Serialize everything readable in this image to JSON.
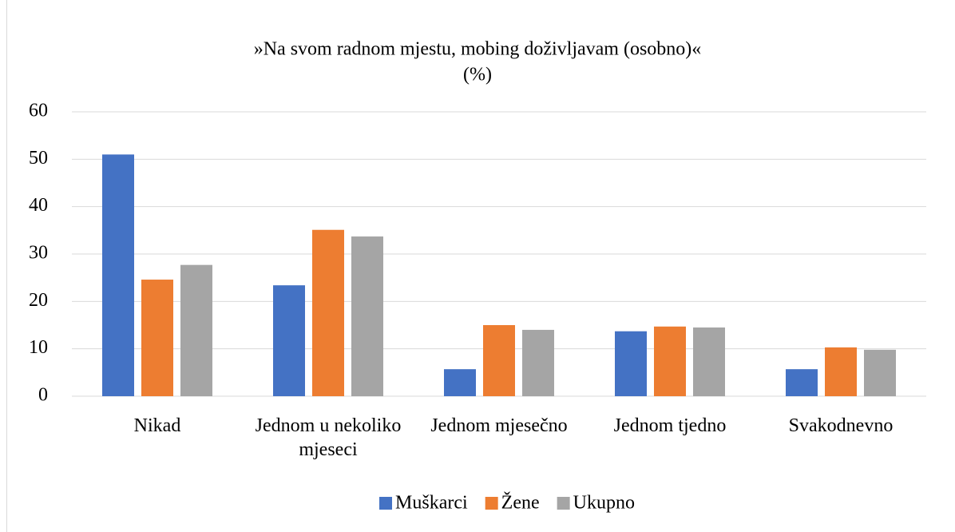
{
  "chart_data": {
    "type": "bar",
    "title": "»Na svom radnom mjestu, mobing doživljavam (osobno)«",
    "subtitle": "(%)",
    "categories": [
      "Nikad",
      "Jednom u nekoliko mjeseci",
      "Jednom mjesečno",
      "Jednom tjedno",
      "Svakodnevno"
    ],
    "series": [
      {
        "name": "Muškarci",
        "color": "#4472c4",
        "values": [
          51.0,
          23.4,
          5.7,
          13.7,
          5.7
        ]
      },
      {
        "name": "Žene",
        "color": "#ed7d31",
        "values": [
          24.6,
          35.1,
          15.0,
          14.7,
          10.3
        ]
      },
      {
        "name": "Ukupno",
        "color": "#a5a5a5",
        "values": [
          27.7,
          33.7,
          14.0,
          14.5,
          9.8
        ]
      }
    ],
    "ylim": [
      0,
      60
    ],
    "yticks": [
      0,
      10,
      20,
      30,
      40,
      50,
      60
    ],
    "grid": true,
    "legend": "bottom"
  }
}
